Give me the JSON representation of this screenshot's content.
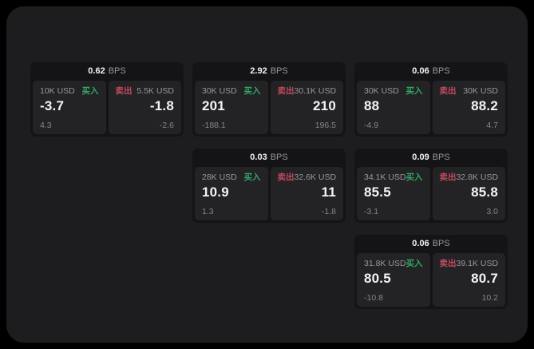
{
  "colors": {
    "background": "#000000",
    "panel": "#1d1d1f",
    "card": "#141416",
    "tile": "#232326",
    "text_primary": "#f4f4f5",
    "text_secondary": "#98989d",
    "text_dim": "#85858a",
    "buy": "#33a763",
    "sell": "#c24a5e"
  },
  "cards": [
    {
      "col": 1,
      "row": 1,
      "bps_value": "0.62",
      "bps_unit": "BPS",
      "buy": {
        "amount": "10K USD",
        "label": "买入",
        "price": "-3.7",
        "delta": "4.3"
      },
      "sell": {
        "label": "卖出",
        "amount": "5.5K USD",
        "price": "-1.8",
        "delta": "-2.6"
      }
    },
    {
      "col": 2,
      "row": 1,
      "bps_value": "2.92",
      "bps_unit": "BPS",
      "buy": {
        "amount": "30K USD",
        "label": "买入",
        "price": "201",
        "delta": "-188.1"
      },
      "sell": {
        "label": "卖出",
        "amount": "30.1K USD",
        "price": "210",
        "delta": "196.5"
      }
    },
    {
      "col": 3,
      "row": 1,
      "bps_value": "0.06",
      "bps_unit": "BPS",
      "buy": {
        "amount": "30K USD",
        "label": "买入",
        "price": "88",
        "delta": "-4.9"
      },
      "sell": {
        "label": "卖出",
        "amount": "30K USD",
        "price": "88.2",
        "delta": "4.7"
      }
    },
    {
      "col": 2,
      "row": 2,
      "bps_value": "0.03",
      "bps_unit": "BPS",
      "buy": {
        "amount": "28K USD",
        "label": "买入",
        "price": "10.9",
        "delta": "1.3"
      },
      "sell": {
        "label": "卖出",
        "amount": "32.6K USD",
        "price": "11",
        "delta": "-1.8"
      }
    },
    {
      "col": 3,
      "row": 2,
      "bps_value": "0.09",
      "bps_unit": "BPS",
      "buy": {
        "amount": "34.1K USD",
        "label": "买入",
        "price": "85.5",
        "delta": "-3.1"
      },
      "sell": {
        "label": "卖出",
        "amount": "32.8K USD",
        "price": "85.8",
        "delta": "3.0"
      }
    },
    {
      "col": 3,
      "row": 3,
      "bps_value": "0.06",
      "bps_unit": "BPS",
      "buy": {
        "amount": "31.8K USD",
        "label": "买入",
        "price": "80.5",
        "delta": "-10.8"
      },
      "sell": {
        "label": "卖出",
        "amount": "39.1K USD",
        "price": "80.7",
        "delta": "10.2"
      }
    }
  ]
}
